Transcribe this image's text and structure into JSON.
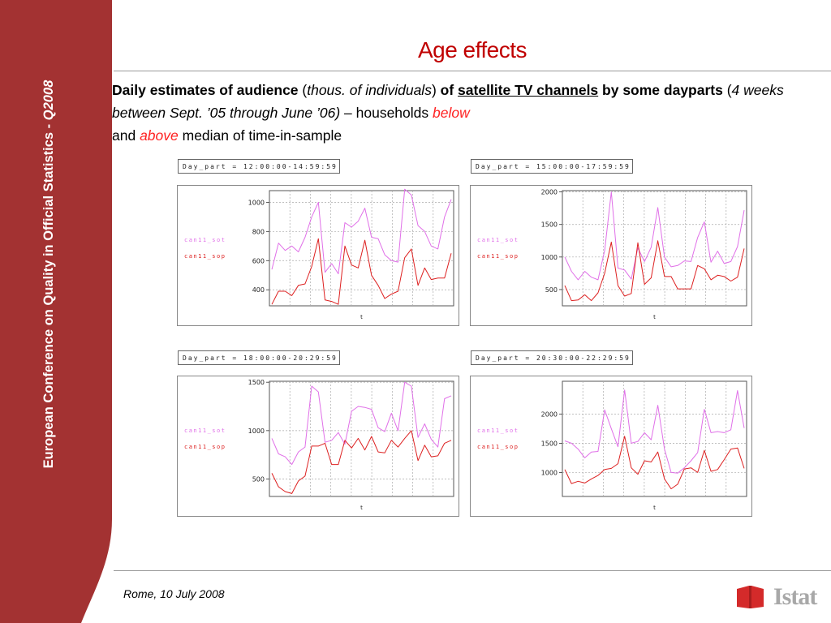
{
  "colors": {
    "sidebar": "#a33232",
    "title": "#c00000",
    "highlight": "#ff2222",
    "series_sot": "#e070e8",
    "series_sop": "#dd2020",
    "grid": "#aaaaaa"
  },
  "sidebar": {
    "text_main": "European Conference on Quality in Official Statistics  -  ",
    "text_italic": "Q2008"
  },
  "title": "Age effects",
  "subtitle": {
    "p1": "Daily estimates of audience ",
    "p2": "(",
    "p3": "thous. of individuals",
    "p4": ") ",
    "p5": "of ",
    "p6": "satellite TV channels",
    "p7": " by some dayparts ",
    "p8": "(",
    "p9": "4 weeks between Sept. ’05 through June ’06)",
    "p10": " – households ",
    "p11": "below",
    "p12": "and ",
    "p13": "above",
    "p14": " median of time-in-sample"
  },
  "footer": {
    "date": "Rome, 10 July 2008",
    "logo_text": "Istat"
  },
  "chart_data": [
    {
      "type": "line",
      "daypart": "Day_part = 12:00:00-14:59:59",
      "xlabel": "t",
      "ylim": [
        290,
        1080
      ],
      "yticks": [
        400,
        600,
        800,
        1000
      ],
      "series": [
        {
          "name": "can11_sot",
          "values": [
            540,
            720,
            670,
            700,
            660,
            760,
            900,
            1000,
            520,
            580,
            510,
            860,
            830,
            870,
            960,
            760,
            750,
            640,
            600,
            590,
            1090,
            1050,
            840,
            800,
            700,
            680,
            900,
            1020
          ]
        },
        {
          "name": "can11_sop",
          "values": [
            300,
            390,
            390,
            360,
            430,
            440,
            560,
            750,
            330,
            320,
            300,
            700,
            570,
            550,
            740,
            500,
            430,
            340,
            370,
            390,
            620,
            680,
            430,
            550,
            470,
            480,
            480,
            650
          ]
        }
      ]
    },
    {
      "type": "line",
      "daypart": "Day_part = 15:00:00-17:59:59",
      "xlabel": "t",
      "ylim": [
        250,
        2020
      ],
      "yticks": [
        500,
        1000,
        1500,
        2000
      ],
      "series": [
        {
          "name": "can11_sot",
          "values": [
            1000,
            780,
            650,
            780,
            690,
            650,
            1100,
            2000,
            830,
            800,
            660,
            1140,
            930,
            1150,
            1760,
            1000,
            850,
            870,
            940,
            930,
            1300,
            1540,
            920,
            1090,
            900,
            930,
            1160,
            1720
          ]
        },
        {
          "name": "can11_sop",
          "values": [
            560,
            330,
            340,
            420,
            330,
            450,
            750,
            1230,
            560,
            400,
            440,
            1220,
            580,
            680,
            1250,
            700,
            700,
            510,
            510,
            510,
            870,
            820,
            650,
            720,
            700,
            630,
            690,
            1130
          ]
        }
      ]
    },
    {
      "type": "line",
      "daypart": "Day_part = 18:00:00-20:29:59",
      "xlabel": "t",
      "ylim": [
        320,
        1510
      ],
      "yticks": [
        500,
        1000,
        1500
      ],
      "series": [
        {
          "name": "can11_sot",
          "values": [
            920,
            760,
            730,
            650,
            780,
            830,
            1460,
            1400,
            880,
            900,
            980,
            860,
            1200,
            1250,
            1240,
            1220,
            1030,
            990,
            1180,
            1000,
            1500,
            1460,
            930,
            1070,
            910,
            830,
            1330,
            1360
          ]
        },
        {
          "name": "can11_sop",
          "values": [
            560,
            420,
            370,
            350,
            480,
            530,
            840,
            840,
            870,
            650,
            650,
            900,
            820,
            920,
            800,
            940,
            780,
            770,
            900,
            830,
            920,
            1000,
            690,
            850,
            730,
            740,
            870,
            900
          ]
        }
      ]
    },
    {
      "type": "line",
      "daypart": "Day_part = 20:30:00-22:29:59",
      "xlabel": "t",
      "ylim": [
        590,
        2560
      ],
      "yticks": [
        1000,
        1500,
        2000
      ],
      "series": [
        {
          "name": "can11_sot",
          "values": [
            1540,
            1500,
            1400,
            1250,
            1350,
            1360,
            2070,
            1750,
            1440,
            2410,
            1500,
            1530,
            1680,
            1560,
            2150,
            1400,
            1000,
            990,
            1080,
            1200,
            1340,
            2080,
            1680,
            1700,
            1680,
            1730,
            2400,
            1760
          ]
        },
        {
          "name": "can11_sop",
          "values": [
            1050,
            810,
            850,
            820,
            890,
            950,
            1050,
            1070,
            1150,
            1620,
            1080,
            970,
            1200,
            1180,
            1350,
            890,
            720,
            800,
            1060,
            1080,
            1000,
            1380,
            1020,
            1050,
            1220,
            1400,
            1420,
            1070
          ]
        }
      ]
    }
  ]
}
